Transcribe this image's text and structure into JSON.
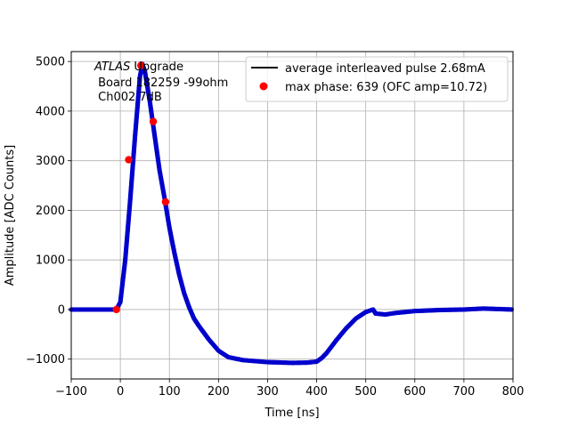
{
  "chart_data": {
    "type": "scatter",
    "title": "",
    "xlabel": "Time [ns]",
    "ylabel": "Amplitude [ADC Counts]",
    "xlim": [
      -100,
      800
    ],
    "ylim": [
      -1400,
      5200
    ],
    "xticks": [
      -100,
      0,
      100,
      200,
      300,
      400,
      500,
      600,
      700,
      800
    ],
    "yticks": [
      -1000,
      0,
      1000,
      2000,
      3000,
      4000,
      5000
    ],
    "xtick_labels": [
      "−100",
      "0",
      "100",
      "200",
      "300",
      "400",
      "500",
      "600",
      "700",
      "800"
    ],
    "ytick_labels": [
      "−1000",
      "0",
      "1000",
      "2000",
      "3000",
      "4000",
      "5000"
    ],
    "grid": true,
    "legend_position": "top-right",
    "annotation": {
      "line1_italic": "ATLAS",
      "line1_rest": " Upgrade",
      "line2": " Board 182259 -99ohm",
      "line3": " Ch002 7dB"
    },
    "series": [
      {
        "name": "average interleaved pulse 2.68mA",
        "style": "line+points",
        "line_color": "#000000",
        "marker_color": "#0000cc",
        "x": [
          -100,
          -20,
          -8,
          0,
          10,
          20,
          30,
          40,
          45,
          50,
          60,
          70,
          80,
          90,
          100,
          110,
          120,
          130,
          140,
          150,
          160,
          180,
          200,
          220,
          250,
          300,
          350,
          380,
          400,
          410,
          420,
          440,
          460,
          480,
          500,
          515,
          520,
          540,
          560,
          600,
          650,
          700,
          740,
          800
        ],
        "y": [
          0,
          0,
          0,
          150,
          1000,
          2200,
          3500,
          4700,
          4950,
          4800,
          4200,
          3500,
          2800,
          2250,
          1650,
          1150,
          700,
          330,
          50,
          -180,
          -330,
          -600,
          -830,
          -960,
          -1020,
          -1060,
          -1075,
          -1070,
          -1050,
          -980,
          -880,
          -620,
          -380,
          -180,
          -50,
          0,
          -80,
          -100,
          -70,
          -30,
          -10,
          0,
          20,
          0
        ]
      },
      {
        "name": "max phase: 639 (OFC amp=10.72)",
        "style": "points",
        "marker_color": "#ff0000",
        "x": [
          -8,
          17,
          42,
          67,
          92
        ],
        "y": [
          0,
          3020,
          4920,
          3790,
          2170
        ]
      }
    ]
  }
}
